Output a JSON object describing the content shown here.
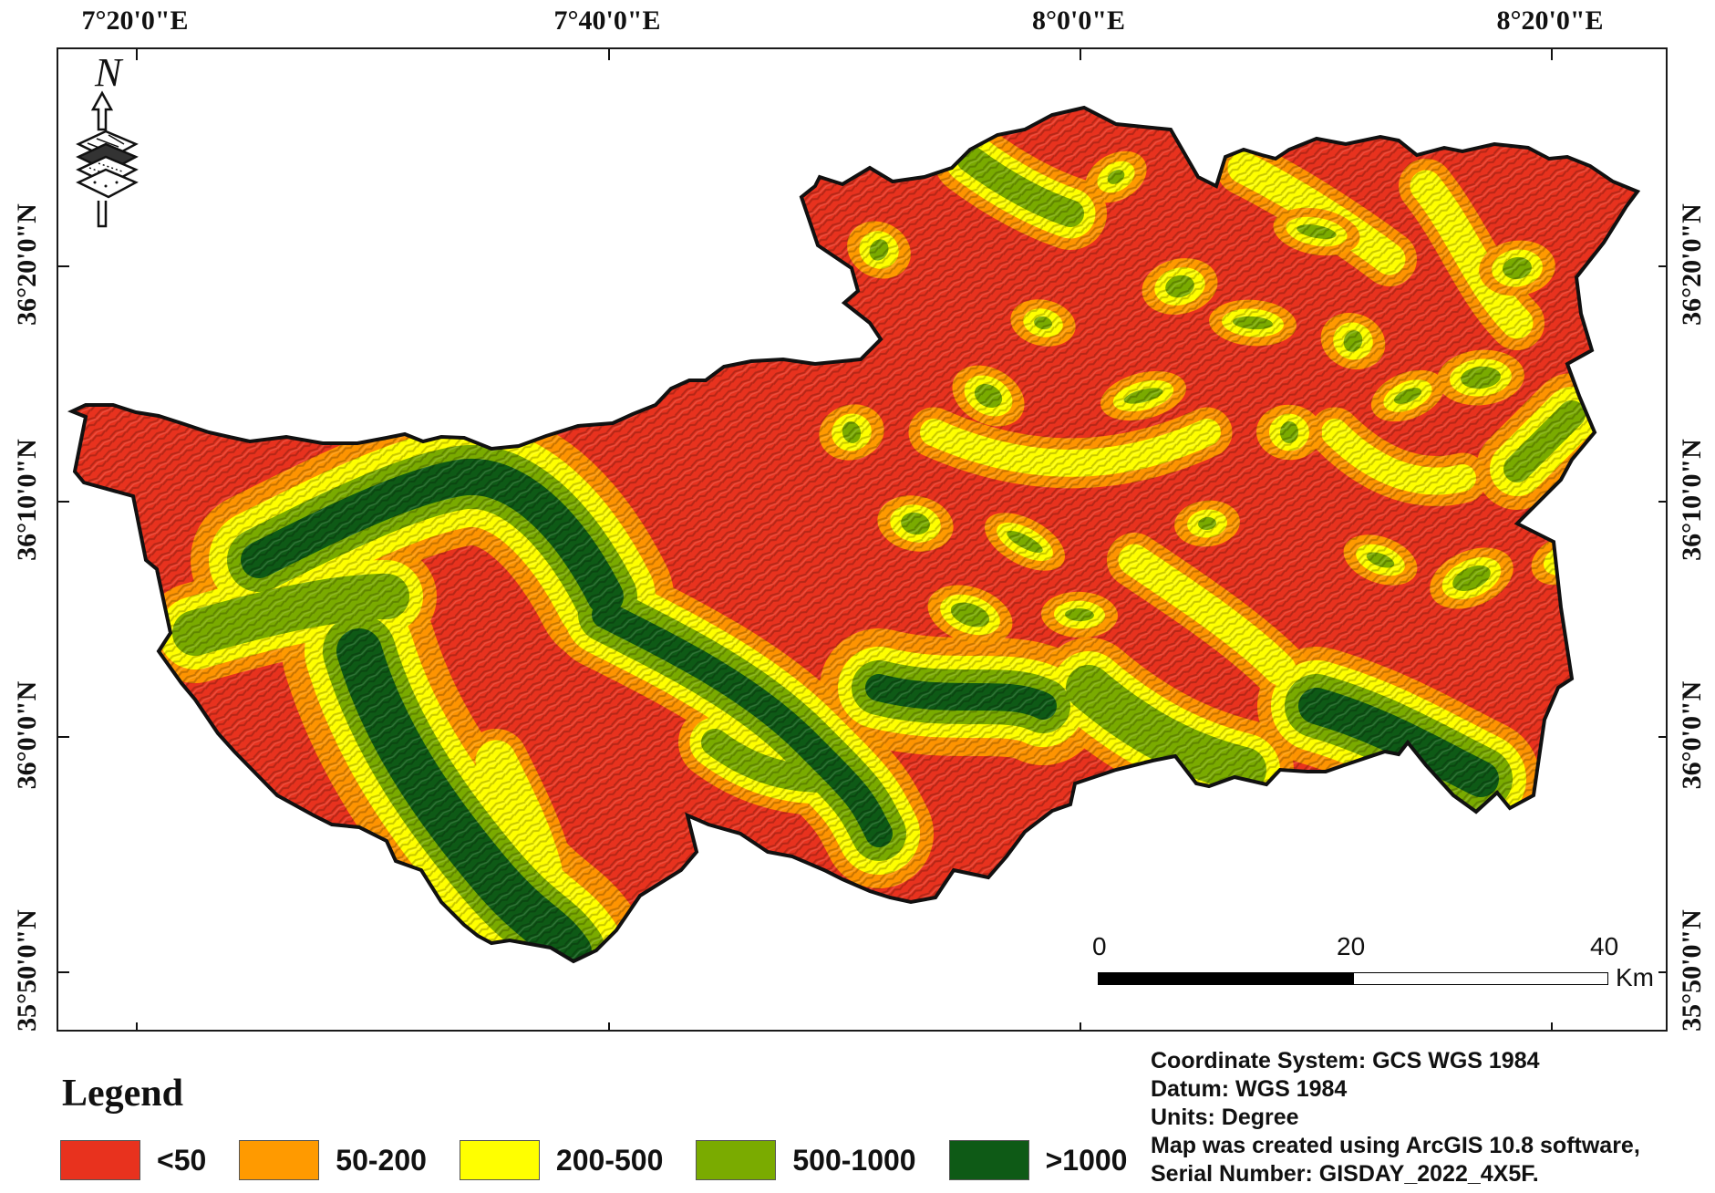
{
  "map": {
    "longitude_labels": [
      "7°20'0\"E",
      "7°40'0\"E",
      "8°0'0\"E",
      "8°20'0\"E"
    ],
    "latitude_labels": [
      "36°20'0\"N",
      "36°10'0\"N",
      "36°0'0\"N",
      "35°50'0\"N"
    ],
    "north_arrow_letter": "N",
    "colors": {
      "lt50": "#e8321e",
      "50_200": "#ff9a00",
      "200_500": "#ffff00",
      "500_1000": "#7aab00",
      "gt1000": "#0e5a16",
      "boundary": "#111111"
    }
  },
  "scale_bar": {
    "labels": [
      "0",
      "20",
      "40"
    ],
    "unit": "Km"
  },
  "legend": {
    "title": "Legend",
    "items": [
      {
        "label": "<50",
        "color": "#e8321e"
      },
      {
        "label": "50-200",
        "color": "#ff9a00"
      },
      {
        "label": "200-500",
        "color": "#ffff00"
      },
      {
        "label": "500-1000",
        "color": "#7aab00"
      },
      {
        "label": ">1000",
        "color": "#0e5a16"
      }
    ]
  },
  "metadata": {
    "line1": "Coordinate System: GCS WGS 1984",
    "line2": "Datum: WGS 1984",
    "line3": "Units: Degree",
    "line4": "Map was created using ArcGIS 10.8 software,",
    "line5": "Serial Number: GISDAY_2022_4X5F."
  }
}
